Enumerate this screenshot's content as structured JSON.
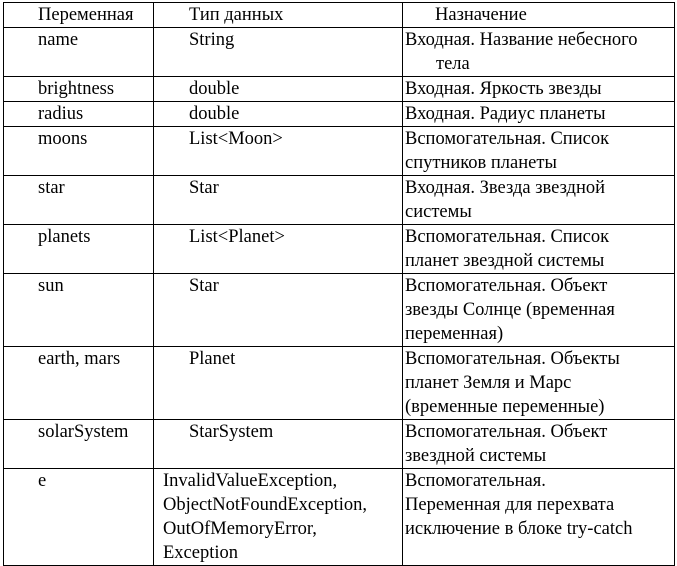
{
  "table": {
    "headers": {
      "variable": "Переменная",
      "type": "Тип данных",
      "purpose": "Назначение"
    },
    "rows": [
      {
        "variable": "name",
        "type": [
          "String"
        ],
        "purpose": [
          "Входная. Название небесного",
          "тела"
        ]
      },
      {
        "variable": "brightness",
        "type": [
          "double"
        ],
        "purpose": [
          "Входная. Яркость звезды"
        ]
      },
      {
        "variable": "radius",
        "type": [
          "double"
        ],
        "purpose": [
          "Входная. Радиус планеты"
        ]
      },
      {
        "variable": "moons",
        "type": [
          "List<Moon>"
        ],
        "purpose": [
          "Вспомогательная. Список",
          "спутников планеты"
        ]
      },
      {
        "variable": "star",
        "type": [
          "Star"
        ],
        "purpose": [
          "Входная. Звезда звездной",
          "системы"
        ]
      },
      {
        "variable": "planets",
        "type": [
          "List<Planet>"
        ],
        "purpose": [
          "Вспомогательная. Список",
          "планет звездной системы"
        ]
      },
      {
        "variable": "sun",
        "type": [
          "Star"
        ],
        "purpose": [
          "Вспомогательная. Объект",
          "звезды Солнце (временная",
          "переменная)"
        ]
      },
      {
        "variable": "earth, mars",
        "type": [
          "Planet"
        ],
        "purpose": [
          "Вспомогательная. Объекты",
          "планет Земля и Марс",
          "(временные переменные)"
        ]
      },
      {
        "variable": "solarSystem",
        "type": [
          "StarSystem"
        ],
        "purpose": [
          "Вспомогательная. Объект",
          "звездной системы"
        ]
      },
      {
        "variable": "e",
        "type": [
          "InvalidValueException,",
          "ObjectNotFoundException,",
          "OutOfMemoryError,",
          "Exception"
        ],
        "purpose": [
          "Вспомогательная.",
          "Переменная для перехвата",
          "исключение в блоке try-catch"
        ]
      }
    ]
  }
}
